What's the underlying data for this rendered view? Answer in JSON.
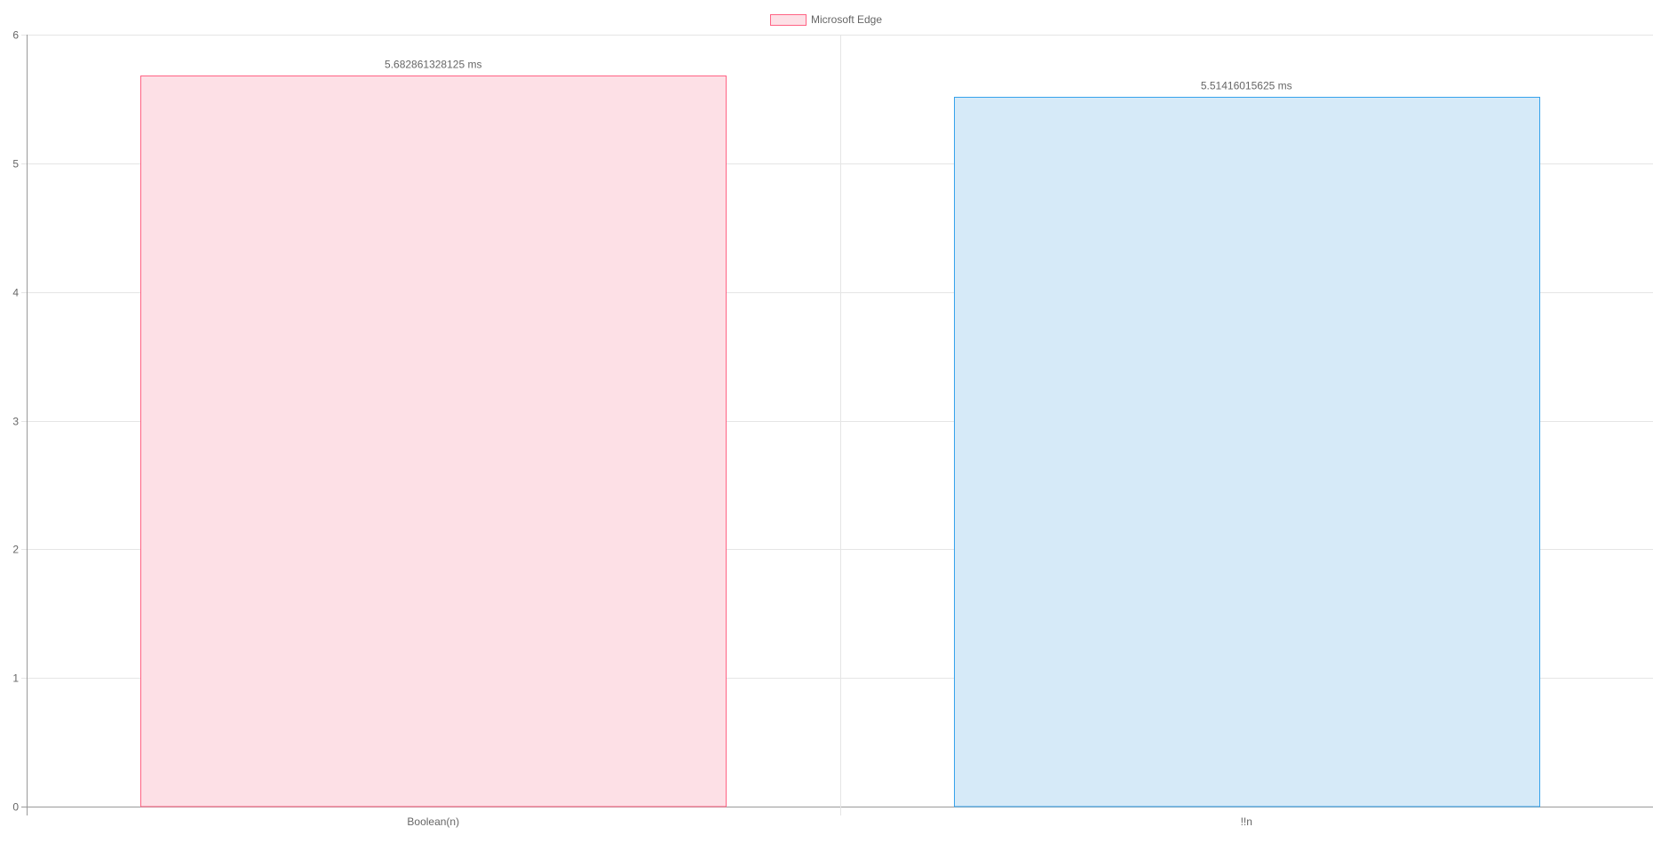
{
  "chart_data": {
    "type": "bar",
    "categories": [
      "Boolean(n)",
      "!!n"
    ],
    "values": [
      5.682861328125,
      5.51416015625
    ],
    "value_labels": [
      "5.682861328125 ms",
      "5.51416015625 ms"
    ],
    "series": [
      {
        "name": "Microsoft Edge",
        "values": [
          5.682861328125,
          5.51416015625
        ]
      }
    ],
    "bar_fill_colors": [
      "#fde0e6",
      "#d6eaf8"
    ],
    "bar_border_colors": [
      "#ff6384",
      "#36a2eb"
    ],
    "legend": {
      "position": "top-center",
      "label": "Microsoft Edge",
      "fill_color": "#fde0e6",
      "border_color": "#ff6384"
    },
    "ylim": [
      0,
      6
    ],
    "y_ticks": [
      0,
      1,
      2,
      3,
      4,
      5,
      6
    ],
    "y_tick_labels": [
      "0",
      "1",
      "2",
      "3",
      "4",
      "5",
      "6"
    ],
    "grid": true,
    "title": "",
    "xlabel": "",
    "ylabel": ""
  }
}
